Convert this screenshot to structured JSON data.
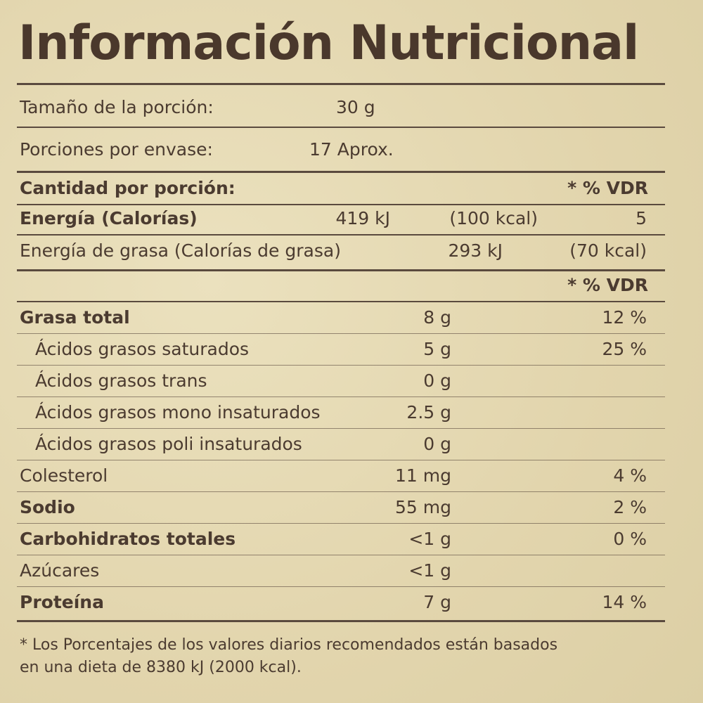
{
  "title": "Información Nutricional",
  "serving": {
    "label": "Tamaño de la porción:",
    "value": "30 g"
  },
  "servings": {
    "label": "Porciones por envase:",
    "value": "17 Aprox."
  },
  "amount_header": {
    "label": "Cantidad por porción:",
    "dv": "* % VDR"
  },
  "energy": {
    "label": "Energía (Calorías)",
    "kj": "419 kJ",
    "kcal": "(100 kcal)",
    "dv": "5"
  },
  "fat_energy": {
    "label": "Energía de grasa (Calorías de grasa)",
    "kj": "293 kJ",
    "kcal": "(70 kcal)"
  },
  "dv_header": "* % VDR",
  "nutrients": [
    {
      "name": "Grasa total",
      "amount": "8 g",
      "dv": "12 %"
    },
    {
      "name": "Ácidos grasos saturados",
      "amount": "5 g",
      "dv": "25 %"
    },
    {
      "name": "Ácidos grasos trans",
      "amount": "0 g"
    },
    {
      "name": "Ácidos grasos mono insaturados",
      "amount": "2.5 g"
    },
    {
      "name": "Ácidos grasos poli insaturados",
      "amount": "0 g"
    },
    {
      "name": "Colesterol",
      "amount": "11 mg",
      "dv": "4 %"
    },
    {
      "name": "Sodio",
      "amount": "55 mg",
      "dv": "2 %"
    },
    {
      "name": "Carbohidratos totales",
      "amount": "<1 g",
      "dv": "0 %"
    },
    {
      "name": "Azúcares",
      "amount": "<1 g"
    },
    {
      "name": "Proteína",
      "amount": "7 g",
      "dv": "14 %"
    }
  ],
  "footnote": [
    "* Los Porcentajes de los valores diarios recomendados están basados",
    "en una dieta de 8380 kJ (2000 kcal)."
  ]
}
